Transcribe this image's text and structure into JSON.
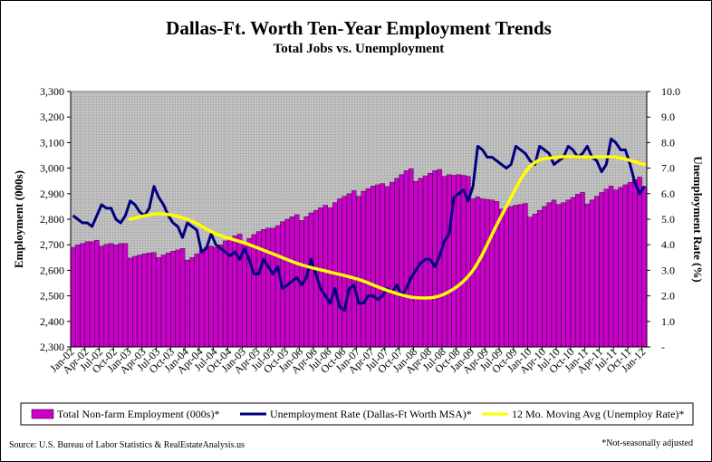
{
  "chart_data": {
    "type": "bar",
    "title": "Dallas-Ft. Worth Ten-Year Employment Trends",
    "subtitle": "Total Jobs vs. Unemployment",
    "ylabel": "Employment (000s)",
    "y2label": "Unemployment Rate (%)",
    "ylim": [
      2300,
      3300
    ],
    "y_ticks": [
      "2,300",
      "2,400",
      "2,500",
      "2,600",
      "2,700",
      "2,800",
      "2,900",
      "3,000",
      "3,100",
      "3,200",
      "3,300"
    ],
    "y2lim": [
      3,
      10
    ],
    "y2_ticks": [
      "-",
      "1.0",
      "2.0",
      "3.0",
      "4.0",
      "5.0",
      "6.0",
      "7.0",
      "8.0",
      "9.0",
      "10.0"
    ],
    "x_start": "Jan-02",
    "x_end": "Jan-12",
    "x_ticks": [
      "Jan-02",
      "Apr-02",
      "Jul-02",
      "Oct-02",
      "Jan-03",
      "Apr-03",
      "Jul-03",
      "Oct-03",
      "Jan-04",
      "Apr-04",
      "Jul-04",
      "Oct-04",
      "Jan-05",
      "Apr-05",
      "Jul-05",
      "Oct-05",
      "Jan-06",
      "Apr-06",
      "Jul-06",
      "Oct-06",
      "Jan-07",
      "Apr-07",
      "Jul-07",
      "Oct-07",
      "Jan-08",
      "Apr-08",
      "Jul-08",
      "Oct-08",
      "Jan-09",
      "Apr-09",
      "Jul-09",
      "Oct-09",
      "Jan-10",
      "Apr-10",
      "Jul-10",
      "Oct-10",
      "Jan-11",
      "Apr-11",
      "Jul-11",
      "Oct-11",
      "Jan-12"
    ],
    "grid": false,
    "legend": "bottom",
    "series": [
      {
        "name": "Total Non-farm Employment (000s)*",
        "kind": "bar",
        "axis": "left",
        "color": "#CC00CC",
        "values": [
          2690,
          2700,
          2705,
          2712,
          2712,
          2718,
          2695,
          2702,
          2705,
          2700,
          2705,
          2705,
          2648,
          2655,
          2660,
          2665,
          2668,
          2670,
          2650,
          2660,
          2668,
          2675,
          2680,
          2686,
          2640,
          2650,
          2665,
          2680,
          2690,
          2695,
          2690,
          2700,
          2715,
          2725,
          2735,
          2742,
          2705,
          2725,
          2740,
          2752,
          2760,
          2765,
          2765,
          2775,
          2790,
          2800,
          2810,
          2818,
          2795,
          2810,
          2825,
          2835,
          2845,
          2855,
          2845,
          2865,
          2880,
          2890,
          2900,
          2912,
          2890,
          2910,
          2920,
          2930,
          2935,
          2940,
          2928,
          2945,
          2960,
          2975,
          2990,
          2998,
          2948,
          2960,
          2970,
          2980,
          2990,
          2995,
          2968,
          2975,
          2972,
          2975,
          2972,
          2968,
          2880,
          2888,
          2880,
          2878,
          2875,
          2870,
          2840,
          2845,
          2850,
          2855,
          2858,
          2862,
          2808,
          2820,
          2835,
          2850,
          2865,
          2875,
          2858,
          2865,
          2875,
          2885,
          2898,
          2905,
          2860,
          2875,
          2890,
          2905,
          2918,
          2930,
          2915,
          2925,
          2935,
          2945,
          2955,
          2965,
          2928
        ]
      },
      {
        "name": "Unemployment Rate (Dallas-Ft Worth MSA)*",
        "kind": "line",
        "axis": "right",
        "color": "#000080",
        "values": [
          6.6,
          6.5,
          6.4,
          6.4,
          6.3,
          6.6,
          6.9,
          6.8,
          6.8,
          6.5,
          6.4,
          6.6,
          7.0,
          6.9,
          6.7,
          6.6,
          6.8,
          7.4,
          7.1,
          6.9,
          6.6,
          6.4,
          6.3,
          6.0,
          6.4,
          6.3,
          6.2,
          5.6,
          5.7,
          6.1,
          5.8,
          5.7,
          5.6,
          5.5,
          5.6,
          5.4,
          5.7,
          5.4,
          5.0,
          5.0,
          5.4,
          5.2,
          5.0,
          5.2,
          4.6,
          4.7,
          4.8,
          4.9,
          4.7,
          4.9,
          5.4,
          5.0,
          4.6,
          4.4,
          4.2,
          4.6,
          4.1,
          4.0,
          4.6,
          4.7,
          4.2,
          4.2,
          4.4,
          4.4,
          4.3,
          4.4,
          4.6,
          4.5,
          4.7,
          4.4,
          4.6,
          4.9,
          5.1,
          5.3,
          5.4,
          5.4,
          5.2,
          5.5,
          5.9,
          6.1,
          7.1,
          7.2,
          7.3,
          7.0,
          7.4,
          8.5,
          8.4,
          8.2,
          8.2,
          8.1,
          8.0,
          7.9,
          8.0,
          8.5,
          8.4,
          8.3,
          8.1,
          8.0,
          8.5,
          8.4,
          8.3,
          8.0,
          8.1,
          8.2,
          8.5,
          8.4,
          8.2,
          8.3,
          8.5,
          8.2,
          8.1,
          7.8,
          8.0,
          8.7,
          8.6,
          8.4,
          8.4,
          8.0,
          7.5,
          7.2,
          7.4
        ]
      },
      {
        "name": "12 Mo. Moving Avg (Unemploy Rate)*",
        "kind": "line",
        "axis": "right",
        "color": "#FFFF00",
        "x": [
          "Jan-03",
          "Jul-03",
          "Jan-04",
          "Jul-04",
          "Jan-05",
          "Jul-05",
          "Jan-06",
          "Jul-06",
          "Jan-07",
          "Jul-07",
          "Jan-08",
          "Jul-08",
          "Jan-09",
          "Jul-09",
          "Jan-10",
          "Jul-10",
          "Jan-11",
          "Jul-11",
          "Jan-12"
        ],
        "values": [
          6.5,
          6.65,
          6.5,
          6.1,
          5.85,
          5.55,
          5.25,
          5.05,
          4.85,
          4.55,
          4.35,
          4.45,
          5.1,
          6.6,
          7.95,
          8.2,
          8.2,
          8.2,
          8.0
        ]
      }
    ]
  },
  "footer": {
    "source": "Source: U.S. Bureau of Labor Statistics & RealEstateAnalysis.us",
    "note": "*Not-seasonally adjusted"
  }
}
